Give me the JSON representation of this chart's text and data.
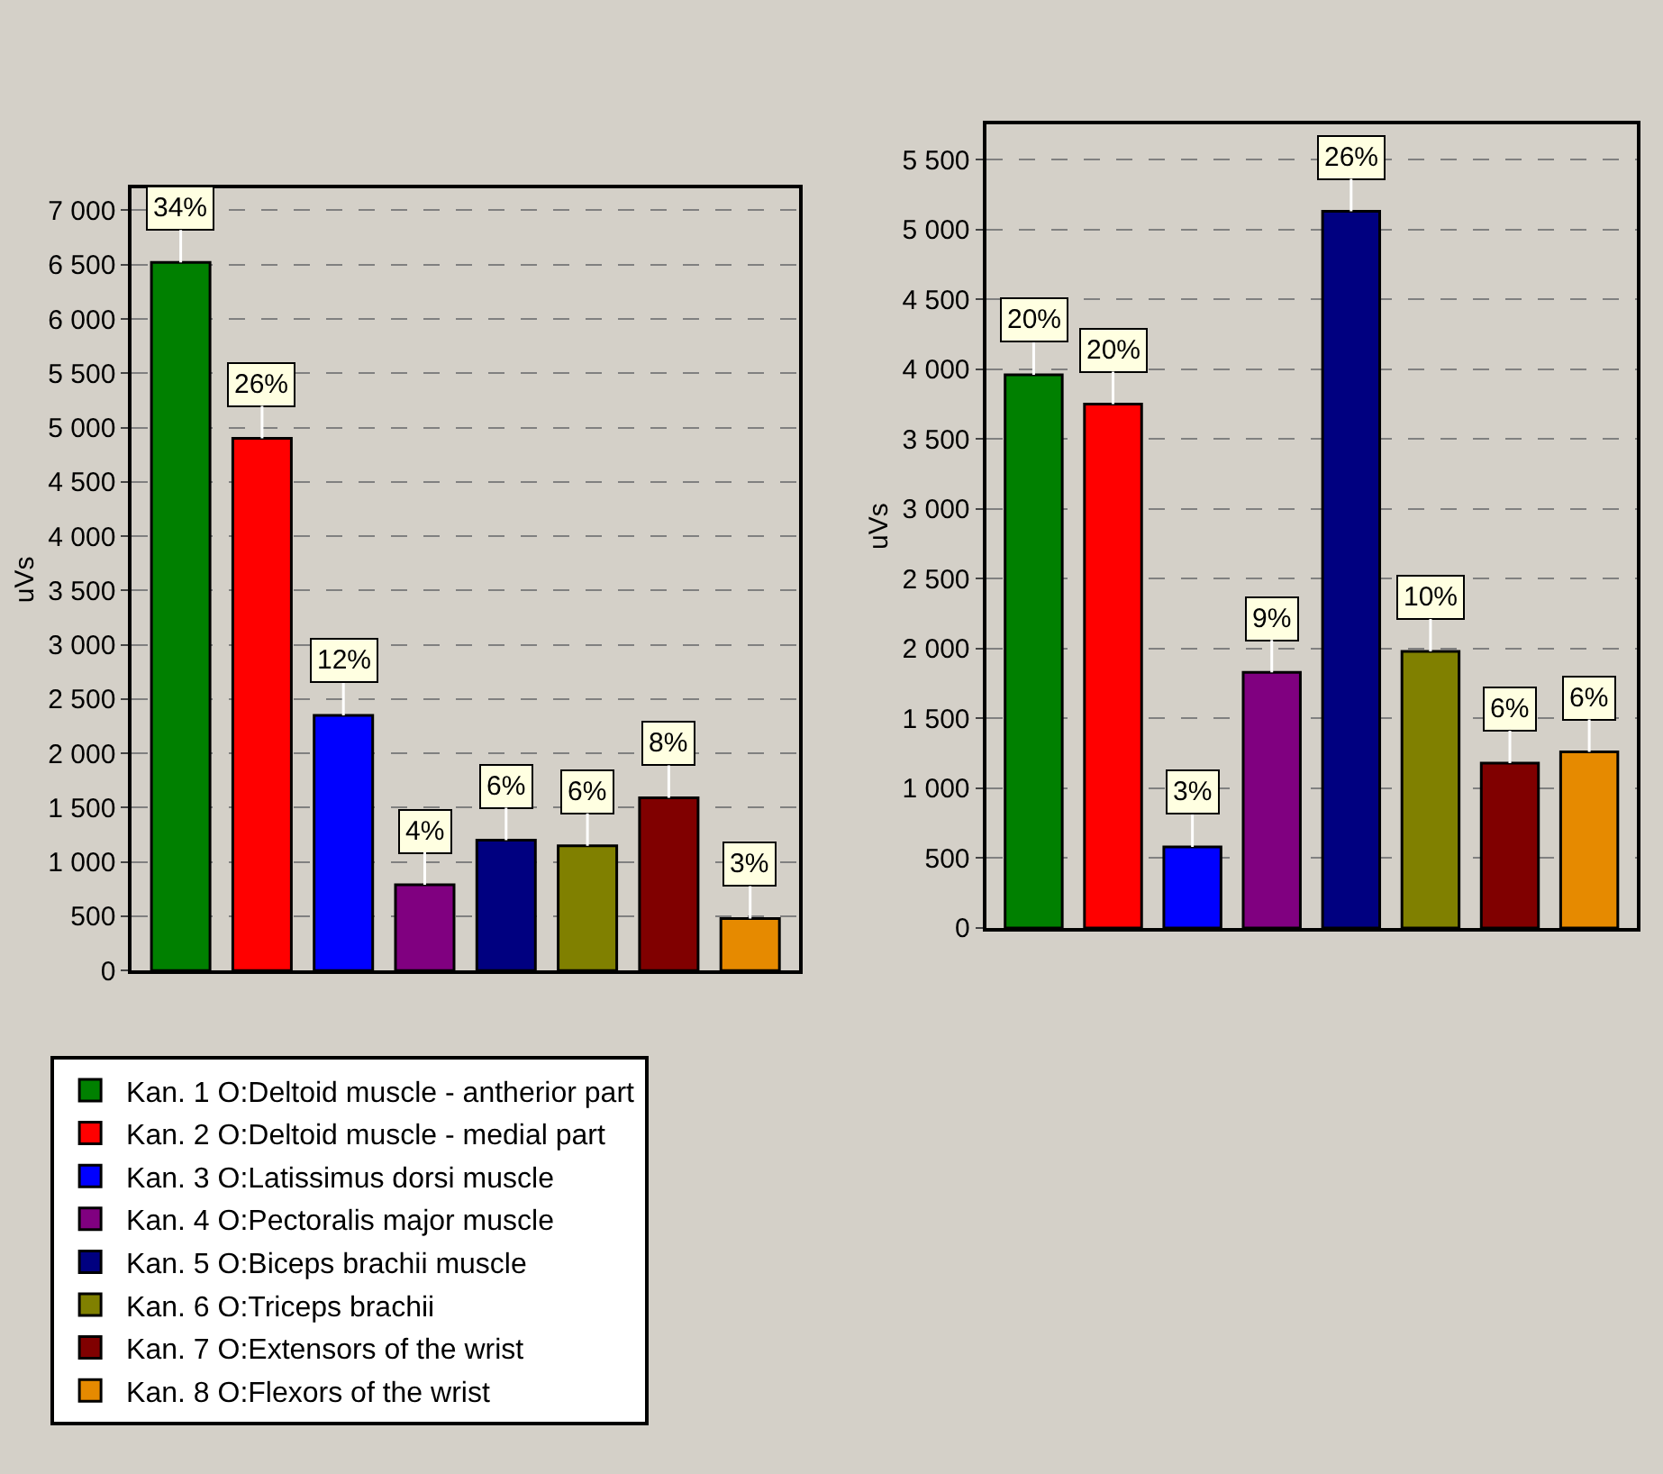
{
  "chart_data": [
    {
      "type": "bar",
      "ylabel": "uVs",
      "categories": [
        null,
        null,
        null,
        null,
        null,
        null,
        null,
        null
      ],
      "tick_labels": "y",
      "ylim": [
        0,
        7200
      ],
      "yticks": [
        {
          "value": 0,
          "label": "0"
        },
        {
          "value": 500,
          "label": "500"
        },
        {
          "value": 1000,
          "label": "1 000"
        },
        {
          "value": 1500,
          "label": "1 500"
        },
        {
          "value": 2000,
          "label": "2 000"
        },
        {
          "value": 2500,
          "label": "2 500"
        },
        {
          "value": 3000,
          "label": "3 000"
        },
        {
          "value": 3500,
          "label": "3 500"
        },
        {
          "value": 4000,
          "label": "4 000"
        },
        {
          "value": 4500,
          "label": "4 500"
        },
        {
          "value": 5000,
          "label": "5 000"
        },
        {
          "value": 5500,
          "label": "5 500"
        },
        {
          "value": 6000,
          "label": "6 000"
        },
        {
          "value": 6500,
          "label": "6 500"
        },
        {
          "value": 7000,
          "label": "7 000"
        }
      ],
      "grid": "y",
      "legend": "bottom",
      "series": [
        {
          "name": "Kan. 1 O:Deltoid muscle - antherior part",
          "color": "#008000",
          "values": [
            6520,
            null,
            null,
            null,
            null,
            null,
            null,
            null
          ]
        },
        {
          "name": "Kan. 2 O:Deltoid muscle - medial part",
          "color": "#ff0000",
          "values": [
            null,
            4900,
            null,
            null,
            null,
            null,
            null,
            null
          ]
        },
        {
          "name": "Kan. 3 O:Latissimus dorsi muscle",
          "color": "#0000ff",
          "values": [
            null,
            null,
            2350,
            null,
            null,
            null,
            null,
            null
          ]
        },
        {
          "name": "Kan. 4 O:Pectoralis major muscle",
          "color": "#800080",
          "values": [
            null,
            null,
            null,
            790,
            null,
            null,
            null,
            null
          ]
        },
        {
          "name": "Kan. 5 O:Biceps brachii muscle",
          "color": "#000080",
          "values": [
            null,
            null,
            null,
            null,
            1200,
            null,
            null,
            null
          ]
        },
        {
          "name": "Kan. 6 O:Triceps brachii",
          "color": "#808000",
          "values": [
            null,
            null,
            null,
            null,
            null,
            1150,
            null,
            null
          ]
        },
        {
          "name": "Kan. 7 O:Extensors of the wrist",
          "color": "#800000",
          "values": [
            null,
            null,
            null,
            null,
            null,
            null,
            1590,
            null
          ]
        },
        {
          "name": "Kan. 8 O:Flexors of the wrist",
          "color": "#e68a00",
          "values": [
            null,
            null,
            null,
            null,
            null,
            null,
            null,
            480
          ]
        }
      ],
      "annotations": [
        {
          "text": "34%",
          "y": 6520
        },
        {
          "text": "26%",
          "y": 4900
        },
        {
          "text": "12%",
          "y": 2350
        },
        {
          "text": "4%",
          "y": 790
        },
        {
          "text": "6%",
          "y": 1200
        },
        {
          "text": "6%",
          "y": 1150
        },
        {
          "text": "8%",
          "y": 1590
        },
        {
          "text": "3%",
          "y": 480
        }
      ]
    },
    {
      "type": "bar",
      "ylabel": "uVs",
      "categories": [
        null,
        null,
        null,
        null,
        null,
        null,
        null,
        null
      ],
      "tick_labels": "y",
      "ylim": [
        0,
        5750
      ],
      "yticks": [
        {
          "value": 0,
          "label": "0"
        },
        {
          "value": 500,
          "label": "500"
        },
        {
          "value": 1000,
          "label": "1 000"
        },
        {
          "value": 1500,
          "label": "1 500"
        },
        {
          "value": 2000,
          "label": "2 000"
        },
        {
          "value": 2500,
          "label": "2 500"
        },
        {
          "value": 3000,
          "label": "3 000"
        },
        {
          "value": 3500,
          "label": "3 500"
        },
        {
          "value": 4000,
          "label": "4 000"
        },
        {
          "value": 4500,
          "label": "4 500"
        },
        {
          "value": 5000,
          "label": "5 000"
        },
        {
          "value": 5500,
          "label": "5 500"
        }
      ],
      "grid": "y",
      "series": [
        {
          "color": "#008000",
          "values": [
            3960,
            null,
            null,
            null,
            null,
            null,
            null,
            null
          ]
        },
        {
          "color": "#ff0000",
          "values": [
            null,
            3750,
            null,
            null,
            null,
            null,
            null,
            null
          ]
        },
        {
          "color": "#0000ff",
          "values": [
            null,
            null,
            580,
            null,
            null,
            null,
            null,
            null
          ]
        },
        {
          "color": "#800080",
          "values": [
            null,
            null,
            null,
            1830,
            null,
            null,
            null,
            null
          ]
        },
        {
          "color": "#000080",
          "values": [
            null,
            null,
            null,
            null,
            5130,
            null,
            null,
            null
          ]
        },
        {
          "color": "#808000",
          "values": [
            null,
            null,
            null,
            null,
            null,
            1980,
            null,
            null
          ]
        },
        {
          "color": "#800000",
          "values": [
            null,
            null,
            null,
            null,
            null,
            null,
            1180,
            null
          ]
        },
        {
          "color": "#e68a00",
          "values": [
            null,
            null,
            null,
            null,
            null,
            null,
            null,
            1260
          ]
        }
      ],
      "annotations": [
        {
          "text": "20%",
          "y": 3960
        },
        {
          "text": "20%",
          "y": 3750
        },
        {
          "text": "3%",
          "y": 580
        },
        {
          "text": "9%",
          "y": 1830
        },
        {
          "text": "26%",
          "y": 5130
        },
        {
          "text": "10%",
          "y": 1980
        },
        {
          "text": "6%",
          "y": 1180
        },
        {
          "text": "6%",
          "y": 1260
        }
      ]
    }
  ]
}
